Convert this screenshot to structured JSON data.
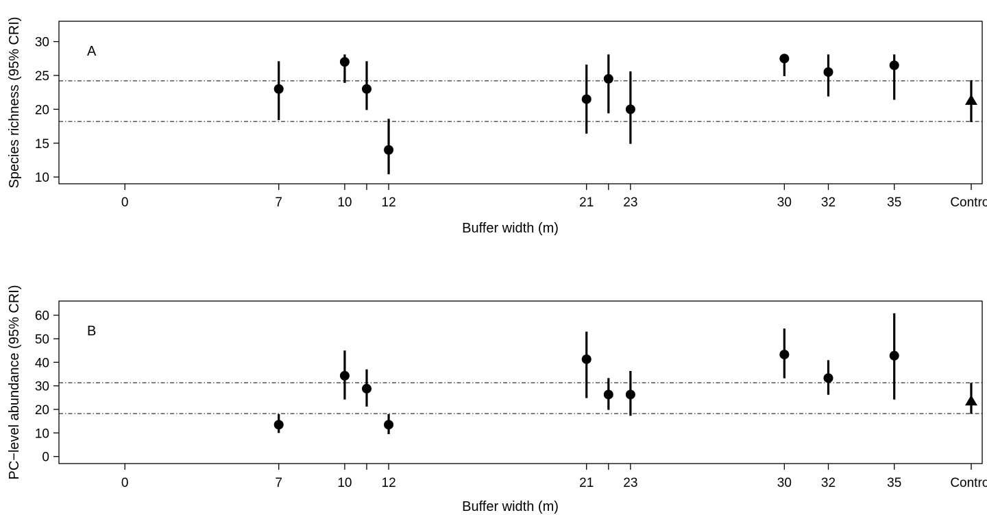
{
  "chart_data": [
    {
      "type": "scatter",
      "panel_label": "A",
      "xlabel": "Buffer width (m)",
      "ylabel": "Species richness (95% CRI)",
      "ylim": [
        9,
        33
      ],
      "yticks": [
        10,
        15,
        20,
        25,
        30
      ],
      "xlim": [
        -3,
        39
      ],
      "xticks": [
        0,
        7,
        10,
        11,
        12,
        21,
        22,
        23,
        30,
        32,
        35,
        38.5
      ],
      "xtick_labels": [
        "0",
        "7",
        "10",
        "",
        "12",
        "21",
        "",
        "23",
        "30",
        "32",
        "35",
        "Control"
      ],
      "reference_lines": [
        18.2,
        24.2
      ],
      "series": [
        {
          "points": [
            {
              "x": 7,
              "y": 23,
              "low": 18.4,
              "high": 27.1
            },
            {
              "x": 10,
              "y": 27,
              "low": 23.9,
              "high": 28.1
            },
            {
              "x": 11,
              "y": 23,
              "low": 19.9,
              "high": 27.1
            },
            {
              "x": 12,
              "y": 14,
              "low": 10.4,
              "high": 18.6
            },
            {
              "x": 21,
              "y": 21.5,
              "low": 16.4,
              "high": 26.6
            },
            {
              "x": 22,
              "y": 24.5,
              "low": 19.4,
              "high": 28.1
            },
            {
              "x": 23,
              "y": 20,
              "low": 14.9,
              "high": 25.6
            },
            {
              "x": 30,
              "y": 27.5,
              "low": 24.9,
              "high": 28.1
            },
            {
              "x": 32,
              "y": 25.5,
              "low": 21.9,
              "high": 28.1
            },
            {
              "x": 35,
              "y": 26.5,
              "low": 21.4,
              "high": 28.1
            },
            {
              "x": 38.5,
              "y": 21.3,
              "low": 18.1,
              "high": 24.3,
              "marker": "triangle"
            }
          ]
        }
      ],
      "grid": false
    },
    {
      "type": "scatter",
      "panel_label": "B",
      "xlabel": "Buffer width (m)",
      "ylabel": "PC−level abundance (95% CRI)",
      "ylim": [
        -3,
        66
      ],
      "yticks": [
        0,
        10,
        20,
        30,
        40,
        50,
        60
      ],
      "xlim": [
        -3,
        39
      ],
      "xticks": [
        0,
        7,
        10,
        11,
        12,
        21,
        22,
        23,
        30,
        32,
        35,
        38.5
      ],
      "xtick_labels": [
        "0",
        "7",
        "10",
        "",
        "12",
        "21",
        "",
        "23",
        "30",
        "32",
        "35",
        "Control"
      ],
      "reference_lines": [
        18.2,
        31.3
      ],
      "series": [
        {
          "points": [
            {
              "x": 7,
              "y": 13.5,
              "low": 10.0,
              "high": 18.0
            },
            {
              "x": 10,
              "y": 34.3,
              "low": 24.2,
              "high": 45.0
            },
            {
              "x": 11,
              "y": 28.8,
              "low": 21.2,
              "high": 37.0
            },
            {
              "x": 12,
              "y": 13.5,
              "low": 9.5,
              "high": 18.0
            },
            {
              "x": 21,
              "y": 41.3,
              "low": 24.8,
              "high": 53.0
            },
            {
              "x": 22,
              "y": 26.3,
              "low": 19.8,
              "high": 33.3
            },
            {
              "x": 23,
              "y": 26.3,
              "low": 17.3,
              "high": 36.3
            },
            {
              "x": 30,
              "y": 43.3,
              "low": 33.2,
              "high": 54.3
            },
            {
              "x": 32,
              "y": 33.3,
              "low": 26.2,
              "high": 40.9
            },
            {
              "x": 35,
              "y": 42.8,
              "low": 24.2,
              "high": 60.8
            },
            {
              "x": 38.5,
              "y": 23.5,
              "low": 18.1,
              "high": 31.3,
              "marker": "triangle"
            }
          ]
        }
      ],
      "grid": false
    }
  ]
}
